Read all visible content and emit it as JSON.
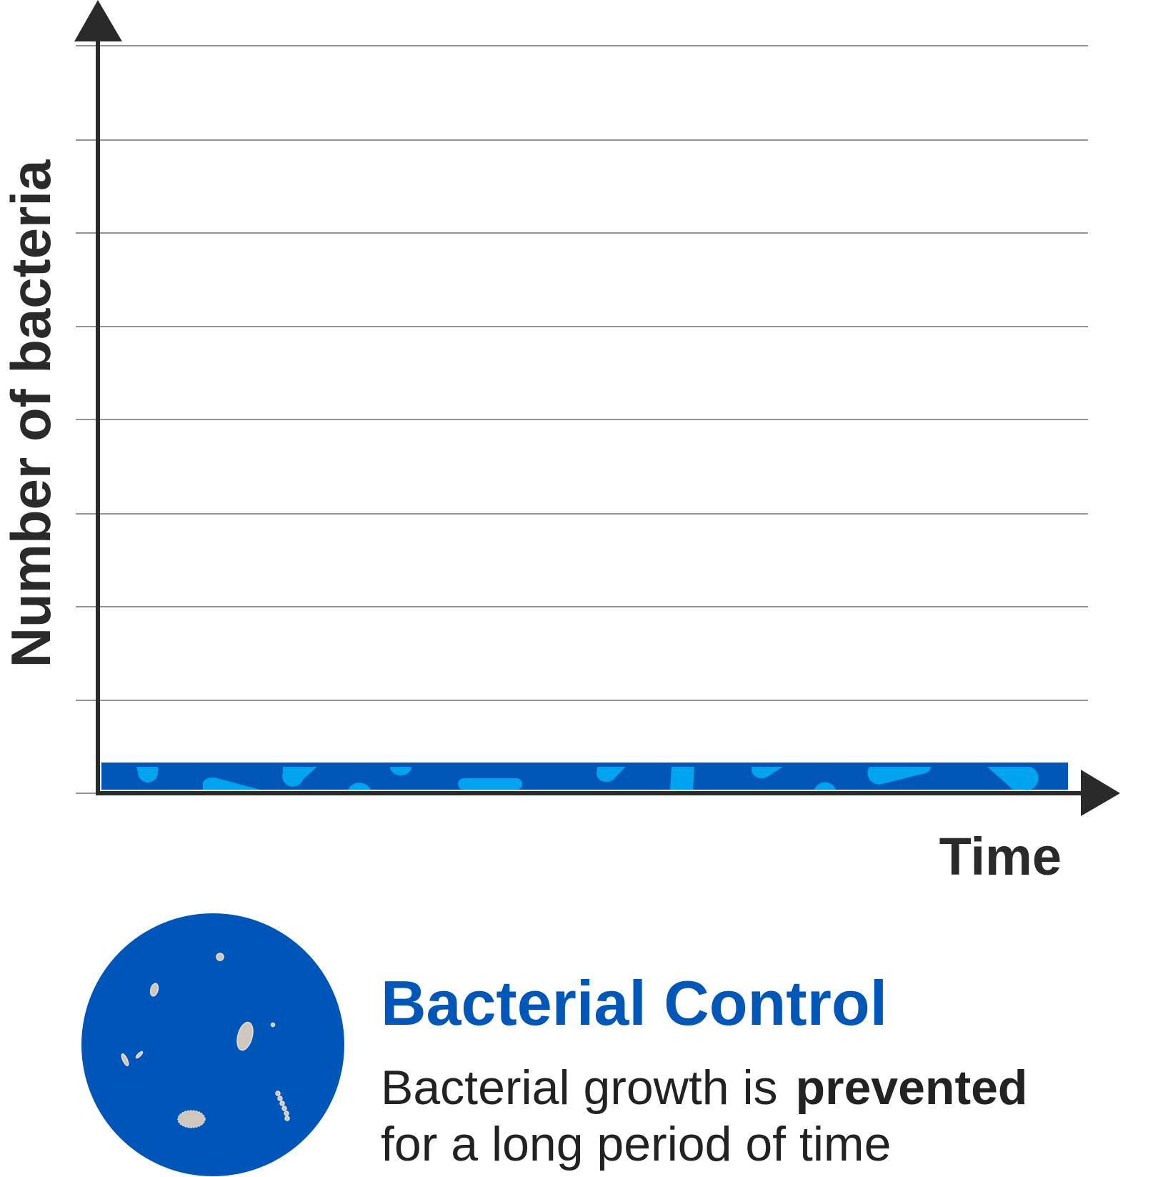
{
  "y_axis_label": "Number of bacteria",
  "x_axis_label": "Time",
  "title": "Bacterial Control",
  "description": {
    "line1": "Bacterial growth is",
    "line1_bold": "prevented",
    "line2": "for a long period of time"
  }
}
